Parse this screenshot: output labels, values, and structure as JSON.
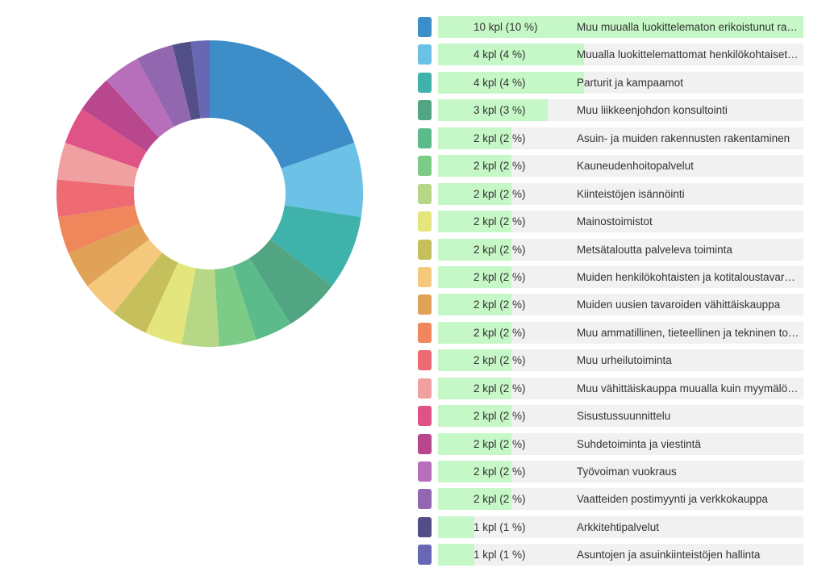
{
  "chart_data": {
    "type": "pie",
    "variant": "donut",
    "legend_position": "right",
    "max_value": 10,
    "items": [
      {
        "value": 10,
        "percent": 10,
        "count_label": "10 kpl (10 %)",
        "label": "Muu muualla luokittelematon erikoistunut rak…",
        "color": "#3d8ec8"
      },
      {
        "value": 4,
        "percent": 4,
        "count_label": "4 kpl (4 %)",
        "label": "Muualla luokittelemattomat henkilökohtaiset …",
        "color": "#6bc1e6"
      },
      {
        "value": 4,
        "percent": 4,
        "count_label": "4 kpl (4 %)",
        "label": "Parturit ja kampaamot",
        "color": "#40b2ac"
      },
      {
        "value": 3,
        "percent": 3,
        "count_label": "3 kpl (3 %)",
        "label": "Muu liikkeenjohdon konsultointi",
        "color": "#52a583"
      },
      {
        "value": 2,
        "percent": 2,
        "count_label": "2 kpl (2 %)",
        "label": "Asuin- ja muiden rakennusten rakentaminen",
        "color": "#5cbb8a"
      },
      {
        "value": 2,
        "percent": 2,
        "count_label": "2 kpl (2 %)",
        "label": "Kauneudenhoitopalvelut",
        "color": "#7ccb87"
      },
      {
        "value": 2,
        "percent": 2,
        "count_label": "2 kpl (2 %)",
        "label": "Kiinteistöjen isännöinti",
        "color": "#b5d786"
      },
      {
        "value": 2,
        "percent": 2,
        "count_label": "2 kpl (2 %)",
        "label": "Mainostoimistot",
        "color": "#e4e67d"
      },
      {
        "value": 2,
        "percent": 2,
        "count_label": "2 kpl (2 %)",
        "label": "Metsätaloutta palveleva toiminta",
        "color": "#c6c05c"
      },
      {
        "value": 2,
        "percent": 2,
        "count_label": "2 kpl (2 %)",
        "label": "Muiden henkilökohtaisten ja kotitaloustavaroi…",
        "color": "#f4c97e"
      },
      {
        "value": 2,
        "percent": 2,
        "count_label": "2 kpl (2 %)",
        "label": "Muiden uusien tavaroiden vähittäiskauppa",
        "color": "#e0a256"
      },
      {
        "value": 2,
        "percent": 2,
        "count_label": "2 kpl (2 %)",
        "label": "Muu ammatillinen, tieteellinen ja tekninen toi…",
        "color": "#ef865c"
      },
      {
        "value": 2,
        "percent": 2,
        "count_label": "2 kpl (2 %)",
        "label": "Muu urheilutoiminta",
        "color": "#ee6b74"
      },
      {
        "value": 2,
        "percent": 2,
        "count_label": "2 kpl (2 %)",
        "label": "Muu vähittäiskauppa muualla kuin myymälöis…",
        "color": "#f1a0a1"
      },
      {
        "value": 2,
        "percent": 2,
        "count_label": "2 kpl (2 %)",
        "label": "Sisustussuunnittelu",
        "color": "#df5386"
      },
      {
        "value": 2,
        "percent": 2,
        "count_label": "2 kpl (2 %)",
        "label": "Suhdetoiminta ja viestintä",
        "color": "#b9478d"
      },
      {
        "value": 2,
        "percent": 2,
        "count_label": "2 kpl (2 %)",
        "label": "Työvoiman vuokraus",
        "color": "#b76fbb"
      },
      {
        "value": 2,
        "percent": 2,
        "count_label": "2 kpl (2 %)",
        "label": "Vaatteiden postimyynti ja verkkokauppa",
        "color": "#9366b0"
      },
      {
        "value": 1,
        "percent": 1,
        "count_label": "1 kpl (1 %)",
        "label": "Arkkitehtipalvelut",
        "color": "#524f86"
      },
      {
        "value": 1,
        "percent": 1,
        "count_label": "1 kpl (1 %)",
        "label": "Asuntojen ja asuinkiinteistöjen hallinta",
        "color": "#6767b4"
      }
    ]
  }
}
